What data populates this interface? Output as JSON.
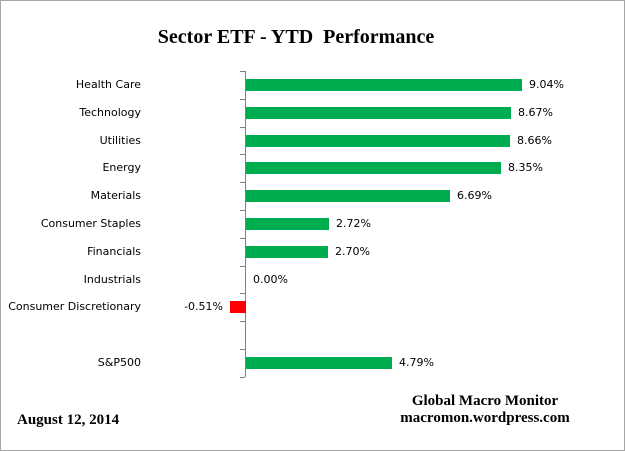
{
  "title": "Sector ETF - YTD  Performance",
  "footer": {
    "date": "August 12, 2014",
    "source_line1": "Global Macro Monitor",
    "source_line2": "macromon.wordpress.com"
  },
  "colors": {
    "positive_bar": "#00AC50",
    "negative_bar": "#FF0000",
    "axis": "#808080",
    "text": "#000000",
    "border": "#A6A6A6"
  },
  "chart_data": {
    "type": "bar",
    "orientation": "horizontal",
    "title": "Sector ETF - YTD  Performance",
    "xlabel": "",
    "ylabel": "",
    "grid": false,
    "legend": false,
    "value_unit": "percent",
    "xlim": [
      -3.4,
      12
    ],
    "categories": [
      "Health Care",
      "Technology",
      "Utilities",
      "Energy",
      "Materials",
      "Consumer Staples",
      "Financials",
      "Industrials",
      "Consumer Discretionary",
      "",
      "S&P500"
    ],
    "values": [
      9.04,
      8.67,
      8.66,
      8.35,
      6.69,
      2.72,
      2.7,
      0.0,
      -0.51,
      null,
      4.79
    ],
    "value_labels": [
      "9.04%",
      "8.67%",
      "8.66%",
      "8.35%",
      "6.69%",
      "2.72%",
      "2.70%",
      "0.00%",
      "-0.51%",
      "",
      "4.79%"
    ]
  }
}
